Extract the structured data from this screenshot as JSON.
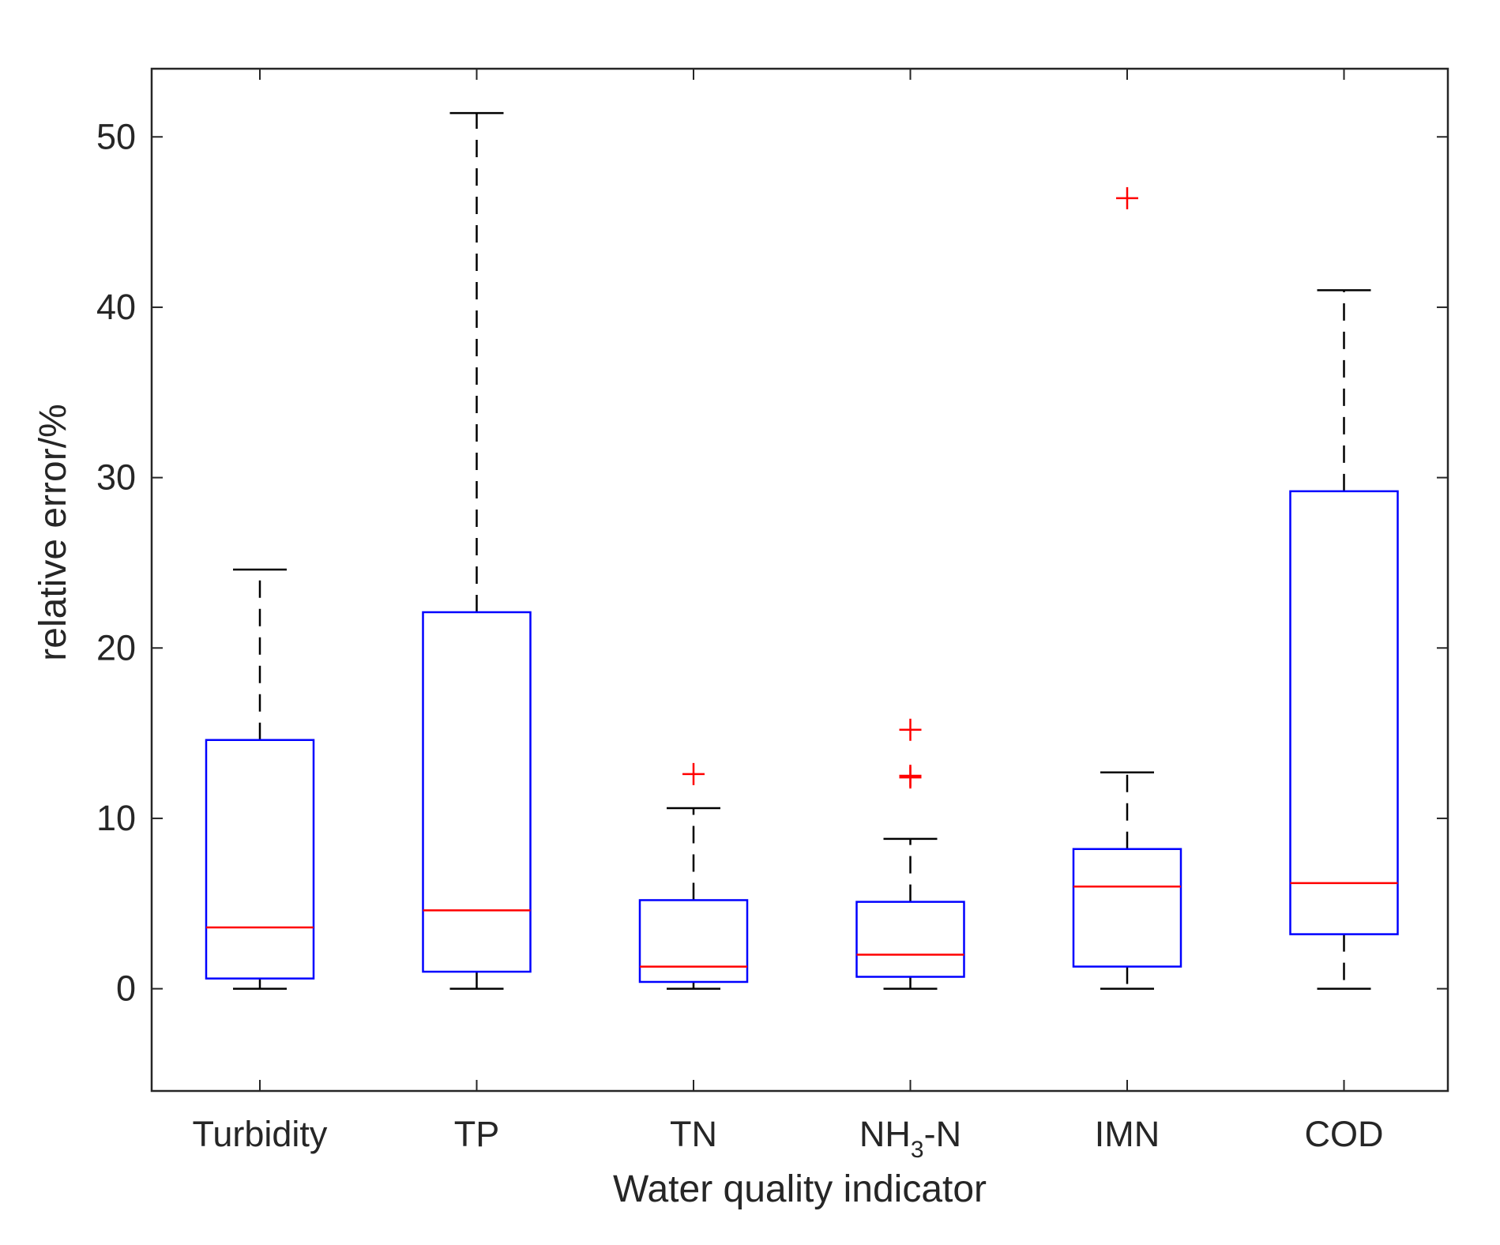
{
  "chart_data": {
    "type": "boxplot",
    "title": "",
    "xlabel": "Water quality indicator",
    "ylabel": "relative error/%",
    "ylim": [
      -6,
      54
    ],
    "yticks": [
      0,
      10,
      20,
      30,
      40,
      50
    ],
    "ytick_labels": [
      "0",
      "10",
      "20",
      "30",
      "40",
      "50"
    ],
    "grid": false,
    "categories": [
      {
        "base": "Turbidity",
        "sub": "",
        "tail": ""
      },
      {
        "base": "TP",
        "sub": "",
        "tail": ""
      },
      {
        "base": "TN",
        "sub": "",
        "tail": ""
      },
      {
        "base": "NH",
        "sub": "3",
        "tail": "-N"
      },
      {
        "base": "IMN",
        "sub": "",
        "tail": ""
      },
      {
        "base": "COD",
        "sub": "",
        "tail": ""
      }
    ],
    "boxes": [
      {
        "name": "Turbidity",
        "whisker_low": 0.0,
        "q1": 0.6,
        "median": 3.6,
        "q3": 14.6,
        "whisker_high": 24.6,
        "outliers": []
      },
      {
        "name": "TP",
        "whisker_low": 0.0,
        "q1": 1.0,
        "median": 4.6,
        "q3": 22.1,
        "whisker_high": 51.4,
        "outliers": []
      },
      {
        "name": "TN",
        "whisker_low": 0.0,
        "q1": 0.4,
        "median": 1.3,
        "q3": 5.2,
        "whisker_high": 10.6,
        "outliers": [
          12.6
        ]
      },
      {
        "name": "NH3-N",
        "whisker_low": 0.0,
        "q1": 0.7,
        "median": 2.0,
        "q3": 5.1,
        "whisker_high": 8.8,
        "outliers": [
          12.4,
          12.5,
          15.2
        ]
      },
      {
        "name": "IMN",
        "whisker_low": 0.0,
        "q1": 1.3,
        "median": 6.0,
        "q3": 8.2,
        "whisker_high": 12.7,
        "outliers": [
          46.4
        ]
      },
      {
        "name": "COD",
        "whisker_low": 0.0,
        "q1": 3.2,
        "median": 6.2,
        "q3": 29.2,
        "whisker_high": 41.0,
        "outliers": []
      }
    ],
    "colors": {
      "box": "#0000ff",
      "median": "#ff0000",
      "whisker": "#000000",
      "outlier": "#ff0000",
      "axis": "#262626"
    }
  }
}
